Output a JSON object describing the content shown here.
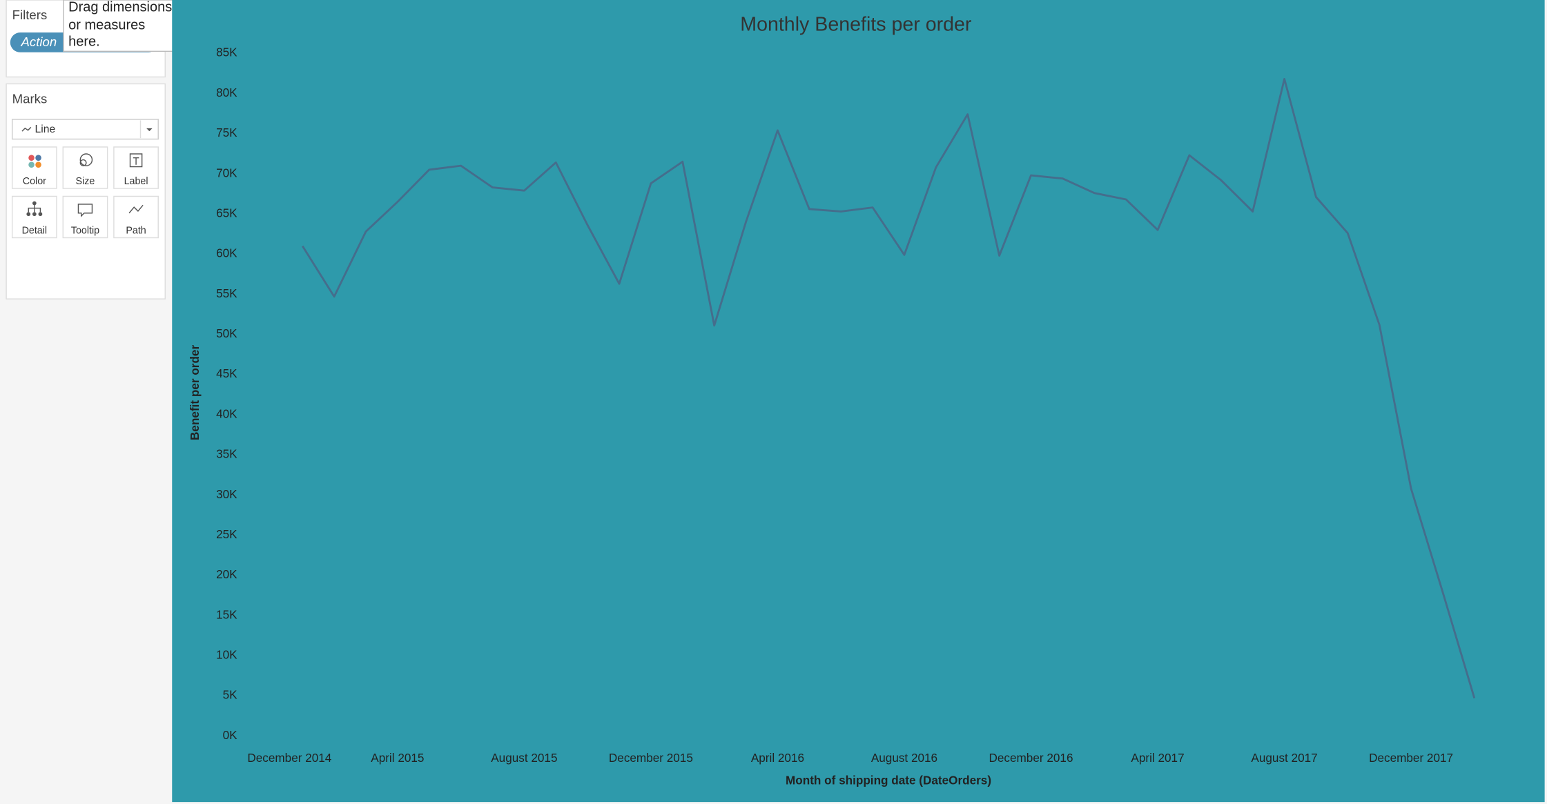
{
  "panel": {
    "filters_title": "Filters",
    "filter_pill": "Action",
    "drop_hint": [
      "Drag dimensions",
      "or measures",
      "here."
    ],
    "marks_title": "Marks",
    "mark_type": "Line",
    "buttons": [
      "Color",
      "Size",
      "Label",
      "Detail",
      "Tooltip",
      "Path"
    ]
  },
  "chart_data": {
    "type": "line",
    "title": "Monthly Benefits per order",
    "x_label": "Month of shipping date (DateOrders)",
    "y_label": "Benefit per order",
    "x": [
      "2015-01",
      "2015-02",
      "2015-03",
      "2015-04",
      "2015-05",
      "2015-06",
      "2015-07",
      "2015-08",
      "2015-09",
      "2015-10",
      "2015-11",
      "2015-12",
      "2016-01",
      "2016-02",
      "2016-03",
      "2016-04",
      "2016-05",
      "2016-06",
      "2016-07",
      "2016-08",
      "2016-09",
      "2016-10",
      "2016-11",
      "2016-12",
      "2017-01",
      "2017-02",
      "2017-03",
      "2017-04",
      "2017-05",
      "2017-06",
      "2017-07",
      "2017-08",
      "2017-09",
      "2017-10",
      "2017-11",
      "2017-12",
      "2018-01",
      "2018-02"
    ],
    "series": [
      {
        "name": "Benefit per order",
        "color": "#456d8c",
        "values": [
          61000,
          54700,
          62800,
          66500,
          70500,
          71000,
          68300,
          67900,
          71400,
          63600,
          56300,
          68800,
          71500,
          51100,
          64000,
          75400,
          65600,
          65300,
          65800,
          59900,
          70800,
          77400,
          59800,
          69800,
          69400,
          67600,
          66800,
          63000,
          72300,
          69200,
          65300,
          81800,
          67100,
          62600,
          51200,
          30800,
          17900,
          4700
        ]
      }
    ],
    "xlim": [
      "2014-11",
      "2018-04"
    ],
    "xticks": [
      {
        "value": "2014-12",
        "label": "December 2014"
      },
      {
        "value": "2015-04",
        "label": "April 2015"
      },
      {
        "value": "2015-08",
        "label": "August 2015"
      },
      {
        "value": "2015-12",
        "label": "December 2015"
      },
      {
        "value": "2016-04",
        "label": "April 2016"
      },
      {
        "value": "2016-08",
        "label": "August 2016"
      },
      {
        "value": "2016-12",
        "label": "December 2016"
      },
      {
        "value": "2017-04",
        "label": "April 2017"
      },
      {
        "value": "2017-08",
        "label": "August 2017"
      },
      {
        "value": "2017-12",
        "label": "December 2017"
      }
    ],
    "ylim": [
      0,
      85000
    ],
    "yticks": [
      {
        "value": 0,
        "label": "0K"
      },
      {
        "value": 5000,
        "label": "5K"
      },
      {
        "value": 10000,
        "label": "10K"
      },
      {
        "value": 15000,
        "label": "15K"
      },
      {
        "value": 20000,
        "label": "20K"
      },
      {
        "value": 25000,
        "label": "25K"
      },
      {
        "value": 30000,
        "label": "30K"
      },
      {
        "value": 35000,
        "label": "35K"
      },
      {
        "value": 40000,
        "label": "40K"
      },
      {
        "value": 45000,
        "label": "45K"
      },
      {
        "value": 50000,
        "label": "50K"
      },
      {
        "value": 55000,
        "label": "55K"
      },
      {
        "value": 60000,
        "label": "60K"
      },
      {
        "value": 65000,
        "label": "65K"
      },
      {
        "value": 70000,
        "label": "70K"
      },
      {
        "value": 75000,
        "label": "75K"
      },
      {
        "value": 80000,
        "label": "80K"
      },
      {
        "value": 85000,
        "label": "85K"
      }
    ],
    "grid": false,
    "background": "#2e9aab"
  }
}
